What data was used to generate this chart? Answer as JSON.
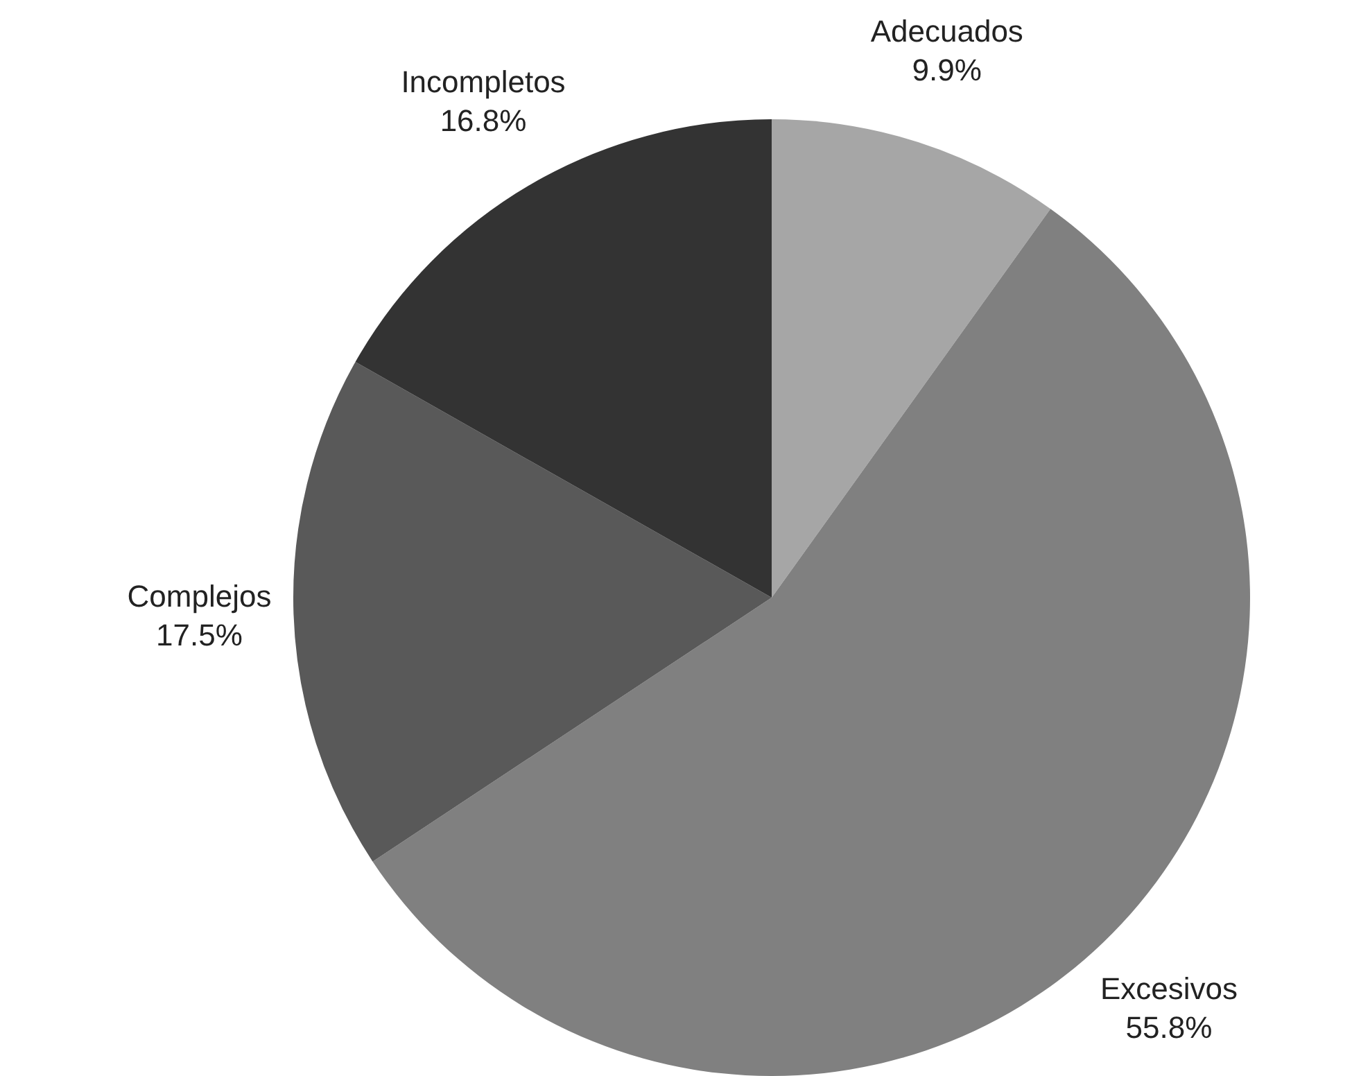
{
  "chart_data": {
    "type": "pie",
    "categories": [
      "Adecuados",
      "Excesivos",
      "Complejos",
      "Incompletos"
    ],
    "values": [
      9.9,
      55.8,
      17.5,
      16.8
    ],
    "value_labels": [
      "9.9%",
      "55.8%",
      "17.5%",
      "16.8%"
    ],
    "colors": [
      "#a6a6a6",
      "#808080",
      "#595959",
      "#333333"
    ],
    "legend": false
  }
}
